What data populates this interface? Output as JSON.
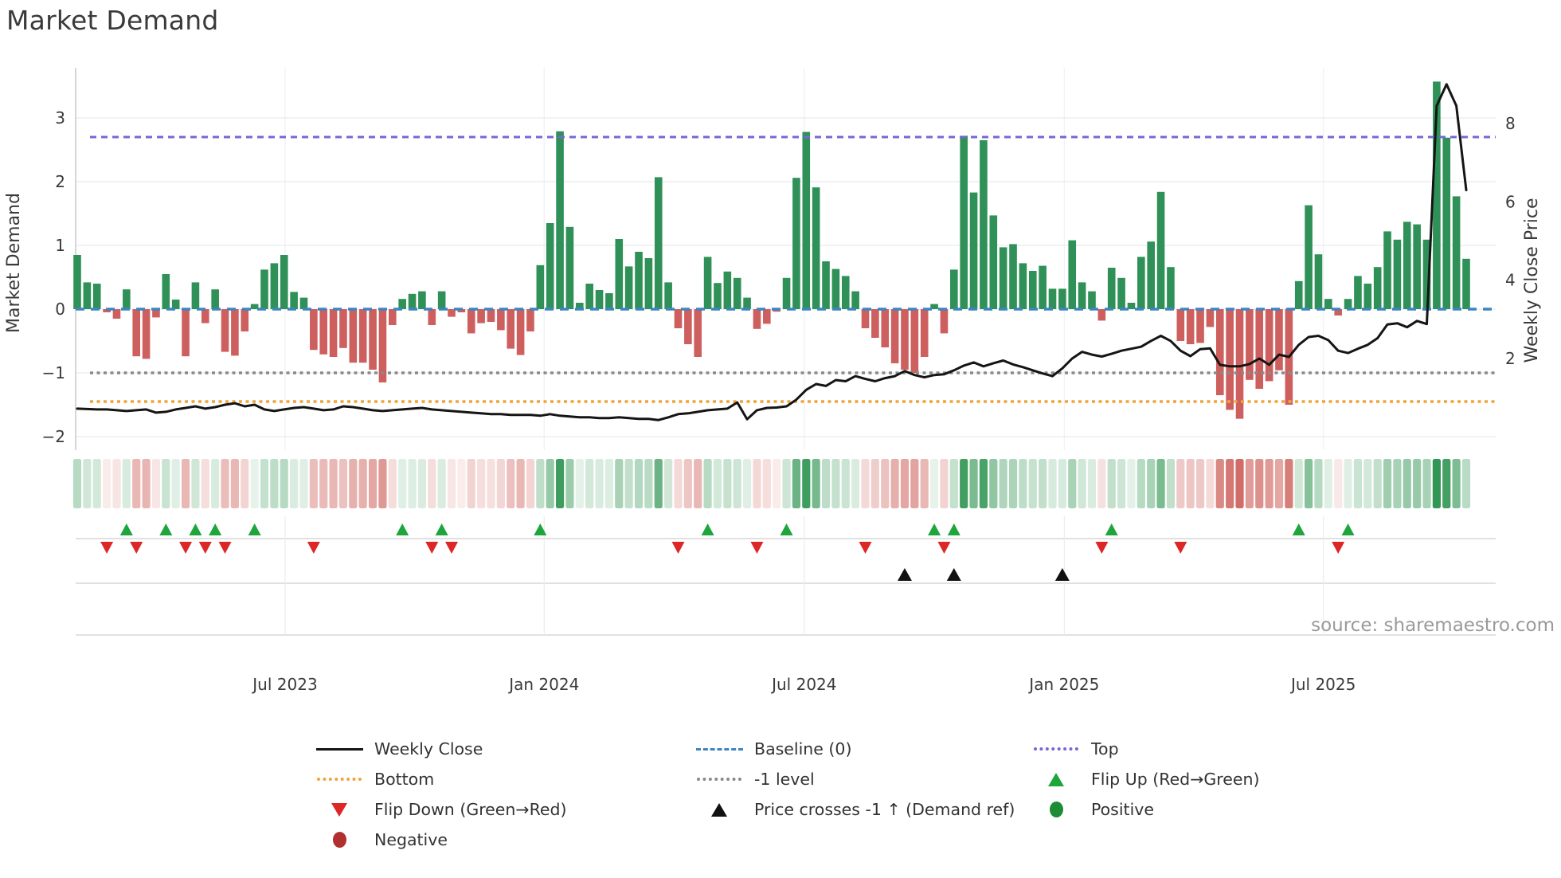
{
  "meta": {
    "title": "Market Demand",
    "source_text": "source: sharemaestro.com"
  },
  "legend": {
    "items": [
      {
        "label": "Weekly Close",
        "marker": "line",
        "color": "#151515"
      },
      {
        "label": "Bottom",
        "marker": "dotted",
        "color": "#f0a43c"
      },
      {
        "label": "Flip Down (Green→Red)",
        "marker": "tri-down",
        "color": "#dd2626"
      },
      {
        "label": "Negative",
        "marker": "dot",
        "color": "#b03030"
      },
      {
        "label": "Baseline (0)",
        "marker": "dashed",
        "color": "#3d85c0"
      },
      {
        "label": "-1 level",
        "marker": "dotted",
        "color": "#8a8a8a"
      },
      {
        "label": "Price crosses -1 ↑ (Demand ref)",
        "marker": "tri-up",
        "color": "#111111"
      },
      {
        "label": "Top",
        "marker": "dotted",
        "color": "#7468d4"
      },
      {
        "label": "Flip Up (Red→Green)",
        "marker": "tri-up",
        "color": "#1ea53c"
      },
      {
        "label": "Positive",
        "marker": "dot",
        "color": "#1d8c35"
      }
    ]
  },
  "chart_data": {
    "type": "bar",
    "title": "Market Demand",
    "ylabel_left": "Market Demand",
    "ylabel_right": "Weekly Close Price",
    "x_tick_labels": [
      "Jul 2023",
      "Jan 2024",
      "Jul 2024",
      "Jan 2025",
      "Jul 2025"
    ],
    "x_tick_week_index": [
      21.1,
      47.4,
      73.8,
      100.2,
      126.5
    ],
    "demand_tick_labels": [
      "3",
      "2",
      "1",
      "0",
      "−1",
      "−2"
    ],
    "demand_ticks": [
      3,
      2,
      1,
      0,
      -1,
      -2
    ],
    "demand_axis_range": [
      -2.2,
      3.8
    ],
    "price_tick_labels": [
      "8",
      "6",
      "4",
      "2"
    ],
    "price_ticks": [
      8,
      6,
      4,
      2
    ],
    "price_axis_range": [
      -0.35,
      9.4
    ],
    "top_level": 2.7,
    "bottom_level": -1.45,
    "minus_one_level": -1,
    "baseline_level": 0,
    "series": [
      {
        "name": "Market Demand (weekly bars)",
        "values": [
          0.85,
          0.42,
          0.4,
          -0.05,
          -0.15,
          0.31,
          -0.74,
          -0.78,
          -0.13,
          0.55,
          0.15,
          -0.74,
          0.42,
          -0.22,
          0.31,
          -0.67,
          -0.73,
          -0.35,
          0.08,
          0.62,
          0.72,
          0.85,
          0.27,
          0.18,
          -0.64,
          -0.71,
          -0.75,
          -0.61,
          -0.84,
          -0.84,
          -0.95,
          -1.15,
          -0.25,
          0.16,
          0.24,
          0.28,
          -0.25,
          0.28,
          -0.12,
          -0.05,
          -0.38,
          -0.22,
          -0.2,
          -0.33,
          -0.62,
          -0.72,
          -0.35,
          0.69,
          1.35,
          2.79,
          1.29,
          0.1,
          0.4,
          0.3,
          0.25,
          1.1,
          0.67,
          0.9,
          0.8,
          2.07,
          0.42,
          -0.3,
          -0.55,
          -0.75,
          0.82,
          0.41,
          0.59,
          0.49,
          0.18,
          -0.31,
          -0.23,
          -0.04,
          0.49,
          2.06,
          2.78,
          1.91,
          0.75,
          0.63,
          0.52,
          0.28,
          -0.3,
          -0.45,
          -0.6,
          -0.85,
          -0.95,
          -1.0,
          -0.75,
          0.08,
          -0.38,
          0.62,
          2.72,
          1.83,
          2.65,
          1.47,
          0.97,
          1.02,
          0.72,
          0.6,
          0.68,
          0.32,
          0.32,
          1.08,
          0.42,
          0.28,
          -0.18,
          0.65,
          0.49,
          0.1,
          0.82,
          1.06,
          1.84,
          0.66,
          -0.5,
          -0.55,
          -0.53,
          -0.28,
          -1.35,
          -1.58,
          -1.72,
          -1.11,
          -1.25,
          -1.13,
          -0.96,
          -1.5,
          0.44,
          1.63,
          0.86,
          0.16,
          -0.1,
          0.16,
          0.52,
          0.4,
          0.66,
          1.22,
          1.09,
          1.37,
          1.33,
          1.09,
          3.57,
          2.69,
          1.77,
          0.79
        ]
      },
      {
        "name": "Weekly Close",
        "values": [
          0.72,
          0.71,
          0.7,
          0.7,
          0.68,
          0.66,
          0.68,
          0.7,
          0.62,
          0.64,
          0.7,
          0.74,
          0.78,
          0.72,
          0.76,
          0.82,
          0.86,
          0.78,
          0.82,
          0.7,
          0.66,
          0.7,
          0.74,
          0.76,
          0.72,
          0.68,
          0.7,
          0.78,
          0.76,
          0.72,
          0.68,
          0.66,
          0.68,
          0.7,
          0.72,
          0.74,
          0.7,
          0.68,
          0.66,
          0.64,
          0.62,
          0.6,
          0.58,
          0.58,
          0.56,
          0.56,
          0.56,
          0.54,
          0.58,
          0.54,
          0.52,
          0.5,
          0.5,
          0.48,
          0.48,
          0.5,
          0.48,
          0.46,
          0.46,
          0.43,
          0.5,
          0.58,
          0.6,
          0.64,
          0.68,
          0.7,
          0.72,
          0.88,
          0.45,
          0.68,
          0.74,
          0.75,
          0.78,
          0.95,
          1.2,
          1.35,
          1.3,
          1.45,
          1.42,
          1.55,
          1.48,
          1.42,
          1.5,
          1.55,
          1.68,
          1.58,
          1.52,
          1.58,
          1.6,
          1.7,
          1.82,
          1.9,
          1.8,
          1.88,
          1.95,
          1.85,
          1.78,
          1.7,
          1.62,
          1.55,
          1.75,
          2.0,
          2.17,
          2.1,
          2.05,
          2.12,
          2.2,
          2.25,
          2.3,
          2.45,
          2.58,
          2.45,
          2.2,
          2.06,
          2.24,
          2.26,
          1.84,
          1.8,
          1.8,
          1.86,
          2.0,
          1.84,
          2.1,
          2.04,
          2.35,
          2.55,
          2.58,
          2.47,
          2.2,
          2.14,
          2.25,
          2.35,
          2.52,
          2.87,
          2.9,
          2.8,
          2.96,
          2.88,
          8.45,
          9.0,
          8.45,
          6.3
        ]
      }
    ],
    "flip_up_weeks": [
      5,
      9,
      12,
      14,
      18,
      33,
      37,
      47,
      64,
      72,
      87,
      89,
      105,
      124,
      129
    ],
    "flip_down_weeks": [
      3,
      6,
      11,
      13,
      15,
      24,
      36,
      38,
      61,
      69,
      80,
      88,
      104,
      112,
      128
    ],
    "price_cross_weeks": [
      84,
      89,
      100
    ],
    "legend_position": "bottom",
    "grid": true,
    "colors": {
      "bar_positive": "#2f9157",
      "bar_negative": "#cd5f5f",
      "price_line": "#151515",
      "baseline": "#3d85c0",
      "top_line": "#7468d4",
      "bottom_line": "#f0a43c",
      "minus_one_line": "#8a8a8a",
      "flip_up_marker": "#1ea53c",
      "flip_down_marker": "#dd2626",
      "price_cross_marker": "#111111",
      "heat_positive": "50,150,84",
      "heat_negative": "206,98,92"
    }
  }
}
